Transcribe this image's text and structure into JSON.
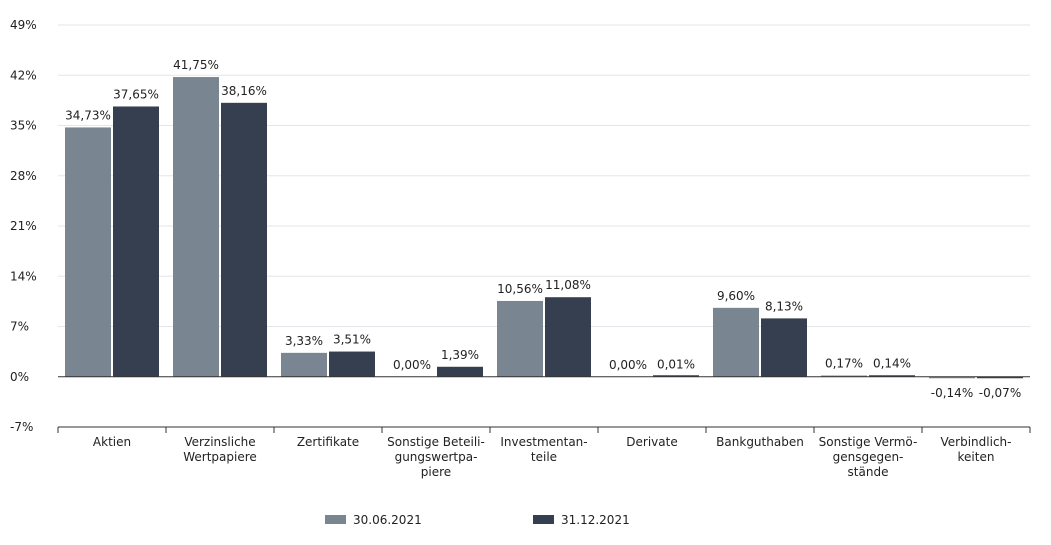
{
  "chart_data": {
    "type": "bar",
    "categories": [
      [
        "Aktien"
      ],
      [
        "Verzinsliche",
        "Wertpapiere"
      ],
      [
        "Zertifikate"
      ],
      [
        "Sonstige Beteili-",
        "gungswertpa-",
        "piere"
      ],
      [
        "Investmentan-",
        "teile"
      ],
      [
        "Derivate"
      ],
      [
        "Bankguthaben"
      ],
      [
        "Sonstige Vermö-",
        "gensgegen-",
        "stände"
      ],
      [
        "Verbindlich-",
        "keiten"
      ]
    ],
    "series": [
      {
        "name": "30.06.2021",
        "color": "#7a8592",
        "values": [
          34.73,
          41.75,
          3.33,
          0.0,
          10.56,
          0.0,
          9.6,
          0.17,
          -0.14
        ],
        "labels": [
          "34,73%",
          "41,75%",
          "3,33%",
          "0,00%",
          "10,56%",
          "0,00%",
          "9,60%",
          "0,17%",
          "-0,14%"
        ]
      },
      {
        "name": "31.12.2021",
        "color": "#353f4f",
        "values": [
          37.65,
          38.16,
          3.51,
          1.39,
          11.08,
          0.01,
          8.13,
          0.14,
          -0.07
        ],
        "labels": [
          "37,65%",
          "38,16%",
          "3,51%",
          "1,39%",
          "11,08%",
          "0,01%",
          "8,13%",
          "0,14%",
          "-0,07%"
        ]
      }
    ],
    "yticks": [
      -7,
      0,
      7,
      14,
      21,
      28,
      35,
      42,
      49
    ],
    "ytick_labels": [
      "-7%",
      "0%",
      "7%",
      "14%",
      "21%",
      "28%",
      "35%",
      "42%",
      "49%"
    ],
    "ylim": [
      -7,
      49
    ],
    "grid": true,
    "legend_position": "bottom"
  }
}
